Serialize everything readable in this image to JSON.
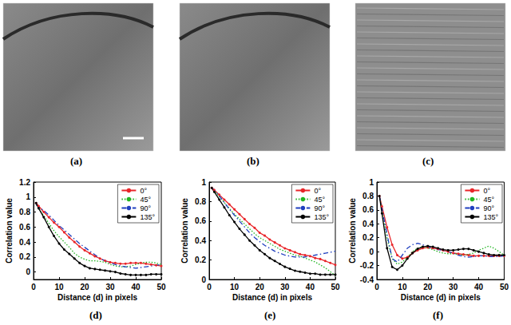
{
  "images": [
    {
      "label": "(a)"
    },
    {
      "label": "(b)"
    },
    {
      "label": "(c)"
    }
  ],
  "chart_data": [
    {
      "type": "line",
      "title": "(d)",
      "x_label": "Distance (d) in pixels",
      "y_label": "Correlation value",
      "xlim": [
        0,
        50
      ],
      "xticks": [
        0,
        10,
        20,
        30,
        40,
        50
      ],
      "ylim": [
        -0.1,
        1.2
      ],
      "yticks": [
        0,
        0.2,
        0.4,
        0.6,
        0.8,
        1,
        1.2
      ],
      "grid": false,
      "legend": "upper right",
      "x": [
        1,
        2,
        4,
        6,
        8,
        10,
        12,
        14,
        16,
        18,
        20,
        22,
        24,
        26,
        28,
        30,
        32,
        34,
        36,
        38,
        40,
        42,
        44,
        46,
        48,
        50
      ],
      "series": [
        {
          "name": "0°",
          "color": "#e8262a",
          "line_style": "solid",
          "marker": "circle",
          "values": [
            0.92,
            0.88,
            0.8,
            0.73,
            0.66,
            0.6,
            0.53,
            0.46,
            0.4,
            0.34,
            0.29,
            0.25,
            0.21,
            0.18,
            0.15,
            0.13,
            0.12,
            0.11,
            0.11,
            0.12,
            0.12,
            0.12,
            0.11,
            0.1,
            0.09,
            0.08
          ]
        },
        {
          "name": "45°",
          "color": "#22b522",
          "line_style": "dotted",
          "marker": "none",
          "values": [
            0.9,
            0.85,
            0.75,
            0.65,
            0.55,
            0.47,
            0.4,
            0.33,
            0.25,
            0.2,
            0.17,
            0.15,
            0.15,
            0.14,
            0.13,
            0.1,
            0.08,
            0.07,
            0.07,
            0.08,
            0.1,
            0.12,
            0.13,
            0.13,
            0.12,
            0.1
          ]
        },
        {
          "name": "90°",
          "color": "#1f3fbf",
          "line_style": "dashdot",
          "marker": "none",
          "values": [
            0.9,
            0.87,
            0.82,
            0.76,
            0.69,
            0.62,
            0.56,
            0.5,
            0.44,
            0.38,
            0.33,
            0.28,
            0.23,
            0.18,
            0.15,
            0.12,
            0.1,
            0.08,
            0.07,
            0.06,
            0.05,
            0.06,
            0.07,
            0.08,
            0.09,
            0.1
          ]
        },
        {
          "name": "135°",
          "color": "#000000",
          "line_style": "solid",
          "marker": "circle",
          "values": [
            0.92,
            0.85,
            0.73,
            0.6,
            0.48,
            0.38,
            0.3,
            0.24,
            0.18,
            0.12,
            0.08,
            0.05,
            0.04,
            0.03,
            0.02,
            0.01,
            0.0,
            -0.02,
            -0.03,
            -0.04,
            -0.04,
            -0.04,
            -0.04,
            -0.03,
            -0.03,
            -0.03
          ]
        }
      ]
    },
    {
      "type": "line",
      "title": "(e)",
      "x_label": "Distance (d) in pixels",
      "y_label": "Correlation value",
      "xlim": [
        0,
        50
      ],
      "xticks": [
        0,
        10,
        20,
        30,
        40,
        50
      ],
      "ylim": [
        0,
        1
      ],
      "yticks": [
        0,
        0.2,
        0.4,
        0.6,
        0.8,
        1
      ],
      "grid": false,
      "legend": "upper right",
      "x": [
        1,
        2,
        4,
        6,
        8,
        10,
        12,
        14,
        16,
        18,
        20,
        22,
        24,
        26,
        28,
        30,
        32,
        34,
        36,
        38,
        40,
        42,
        44,
        46,
        48,
        50
      ],
      "series": [
        {
          "name": "0°",
          "color": "#e8262a",
          "line_style": "solid",
          "marker": "circle",
          "values": [
            0.94,
            0.92,
            0.87,
            0.82,
            0.77,
            0.72,
            0.67,
            0.62,
            0.57,
            0.53,
            0.48,
            0.45,
            0.41,
            0.38,
            0.35,
            0.32,
            0.3,
            0.28,
            0.26,
            0.25,
            0.24,
            0.22,
            0.21,
            0.19,
            0.17,
            0.15
          ]
        },
        {
          "name": "45°",
          "color": "#22b522",
          "line_style": "dotted",
          "marker": "none",
          "values": [
            0.94,
            0.91,
            0.85,
            0.79,
            0.73,
            0.67,
            0.62,
            0.57,
            0.52,
            0.47,
            0.43,
            0.4,
            0.37,
            0.34,
            0.31,
            0.29,
            0.27,
            0.25,
            0.24,
            0.22,
            0.2,
            0.18,
            0.15,
            0.12,
            0.08,
            0.04
          ]
        },
        {
          "name": "90°",
          "color": "#1f3fbf",
          "line_style": "dashdot",
          "marker": "none",
          "values": [
            0.94,
            0.92,
            0.86,
            0.79,
            0.72,
            0.66,
            0.6,
            0.54,
            0.48,
            0.43,
            0.39,
            0.35,
            0.32,
            0.29,
            0.27,
            0.25,
            0.24,
            0.23,
            0.23,
            0.23,
            0.24,
            0.25,
            0.26,
            0.27,
            0.28,
            0.29
          ]
        },
        {
          "name": "135°",
          "color": "#000000",
          "line_style": "solid",
          "marker": "circle",
          "values": [
            0.94,
            0.9,
            0.82,
            0.74,
            0.66,
            0.59,
            0.52,
            0.46,
            0.4,
            0.35,
            0.3,
            0.26,
            0.22,
            0.19,
            0.16,
            0.13,
            0.11,
            0.09,
            0.08,
            0.07,
            0.06,
            0.06,
            0.05,
            0.05,
            0.05,
            0.05
          ]
        }
      ]
    },
    {
      "type": "line",
      "title": "(f)",
      "x_label": "Distance (d) in pixels",
      "y_label": "Correlation value",
      "xlim": [
        0,
        50
      ],
      "xticks": [
        0,
        10,
        20,
        30,
        40,
        50
      ],
      "ylim": [
        -0.4,
        1
      ],
      "yticks": [
        -0.4,
        -0.2,
        0,
        0.2,
        0.4,
        0.6,
        0.8,
        1
      ],
      "grid": false,
      "legend": "upper right",
      "x": [
        1,
        2,
        4,
        6,
        8,
        10,
        12,
        14,
        16,
        18,
        20,
        22,
        24,
        26,
        28,
        30,
        32,
        34,
        36,
        38,
        40,
        42,
        44,
        46,
        48,
        50
      ],
      "series": [
        {
          "name": "0°",
          "color": "#e8262a",
          "line_style": "solid",
          "marker": "circle",
          "values": [
            0.8,
            0.65,
            0.35,
            0.1,
            -0.05,
            -0.1,
            -0.08,
            -0.02,
            0.02,
            0.05,
            0.06,
            0.05,
            0.04,
            0.02,
            0.0,
            -0.02,
            -0.03,
            -0.04,
            -0.05,
            -0.06,
            -0.06,
            -0.06,
            -0.06,
            -0.06,
            -0.06,
            -0.06
          ]
        },
        {
          "name": "45°",
          "color": "#22b522",
          "line_style": "dotted",
          "marker": "none",
          "values": [
            0.8,
            0.6,
            0.2,
            -0.1,
            -0.18,
            -0.15,
            -0.08,
            0.0,
            0.05,
            0.07,
            0.05,
            0.03,
            0.0,
            -0.02,
            -0.03,
            -0.03,
            -0.04,
            -0.05,
            -0.04,
            -0.02,
            0.02,
            0.05,
            0.08,
            0.05,
            0.0,
            -0.05
          ]
        },
        {
          "name": "90°",
          "color": "#1f3fbf",
          "line_style": "dashdot",
          "marker": "none",
          "values": [
            0.8,
            0.62,
            0.25,
            -0.1,
            -0.15,
            -0.05,
            0.05,
            0.1,
            0.12,
            0.1,
            0.07,
            0.05,
            0.03,
            0.02,
            0.0,
            -0.02,
            -0.05,
            -0.07,
            -0.08,
            -0.07,
            -0.06,
            -0.06,
            -0.07,
            -0.07,
            -0.07,
            -0.06
          ]
        },
        {
          "name": "135°",
          "color": "#000000",
          "line_style": "solid",
          "marker": "circle",
          "values": [
            0.8,
            0.55,
            0.05,
            -0.22,
            -0.26,
            -0.2,
            -0.1,
            -0.02,
            0.04,
            0.07,
            0.08,
            0.07,
            0.05,
            0.03,
            0.02,
            0.02,
            0.03,
            0.04,
            0.04,
            0.02,
            0.0,
            -0.02,
            -0.04,
            -0.05,
            -0.05,
            -0.05
          ]
        }
      ]
    }
  ]
}
